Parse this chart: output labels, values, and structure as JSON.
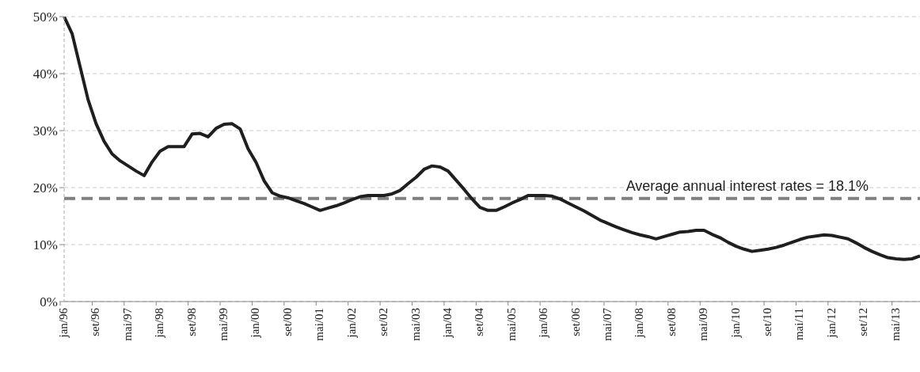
{
  "chart_data": {
    "type": "line",
    "categories": [
      "jan/96",
      null,
      null,
      null,
      "set/96",
      null,
      null,
      null,
      "mai/97",
      null,
      null,
      null,
      "jan/98",
      null,
      null,
      null,
      "set/98",
      null,
      null,
      null,
      "mai/99",
      null,
      null,
      null,
      "jan/00",
      null,
      null,
      null,
      "set/00",
      null,
      null,
      null,
      "mai/01",
      null,
      null,
      null,
      "jan/02",
      null,
      null,
      null,
      "set/02",
      null,
      null,
      null,
      "mai/03",
      null,
      null,
      null,
      "jan/04",
      null,
      null,
      null,
      "set/04",
      null,
      null,
      null,
      "mai/05",
      null,
      null,
      null,
      "jan/06",
      null,
      null,
      null,
      "set/06",
      null,
      null,
      null,
      "mai/07",
      null,
      null,
      null,
      "jan/08",
      null,
      null,
      null,
      "set/08",
      null,
      null,
      null,
      "mai/09",
      null,
      null,
      null,
      "jan/10",
      null,
      null,
      null,
      "set/10",
      null,
      null,
      null,
      "mai/11",
      null,
      null,
      null,
      "jan/12",
      null,
      null,
      null,
      "set/12",
      null,
      null,
      null,
      "mai/13",
      null,
      null,
      null
    ],
    "values": [
      50,
      47.0,
      41.2,
      35.4,
      31.2,
      28.1,
      25.9,
      24.7,
      23.8,
      22.9,
      22.1,
      24.5,
      26.4,
      27.2,
      27.2,
      27.2,
      29.4,
      29.5,
      28.9,
      30.4,
      31.1,
      31.2,
      30.3,
      26.8,
      24.4,
      21.2,
      19.1,
      18.5,
      18.2,
      17.7,
      17.2,
      16.6,
      16.0,
      16.4,
      16.8,
      17.3,
      17.9,
      18.4,
      18.6,
      18.6,
      18.6,
      18.9,
      19.5,
      20.7,
      21.8,
      23.2,
      23.8,
      23.6,
      22.9,
      21.3,
      19.7,
      18.0,
      16.5,
      16.0,
      16.0,
      16.6,
      17.3,
      17.9,
      18.6,
      18.6,
      18.6,
      18.5,
      18.0,
      17.3,
      16.6,
      15.9,
      15.1,
      14.3,
      13.7,
      13.1,
      12.6,
      12.1,
      11.7,
      11.4,
      11.0,
      11.4,
      11.8,
      12.2,
      12.3,
      12.5,
      12.5,
      11.8,
      11.2,
      10.4,
      9.7,
      9.2,
      8.8,
      9.0,
      9.2,
      9.5,
      9.9,
      10.4,
      10.9,
      11.3,
      11.5,
      11.7,
      11.6,
      11.3,
      11.0,
      10.3,
      9.5,
      8.8,
      8.2,
      7.7,
      7.5,
      7.4,
      7.5,
      8.0
    ],
    "color": "#1f1f1f",
    "ylim": [
      0,
      50
    ],
    "yticks": [
      {
        "value": 0,
        "label": "0%"
      },
      {
        "value": 10,
        "label": "10%"
      },
      {
        "value": 20,
        "label": "20%"
      },
      {
        "value": 30,
        "label": "30%"
      },
      {
        "value": 40,
        "label": "40%"
      },
      {
        "value": 50,
        "label": "50%"
      }
    ],
    "grid": "y",
    "ref_lines": [
      {
        "axis": "y",
        "value": 18.1,
        "label": "Average annual interest rates = 18.1%",
        "color": "#808080",
        "line_style": "dashed"
      }
    ]
  }
}
